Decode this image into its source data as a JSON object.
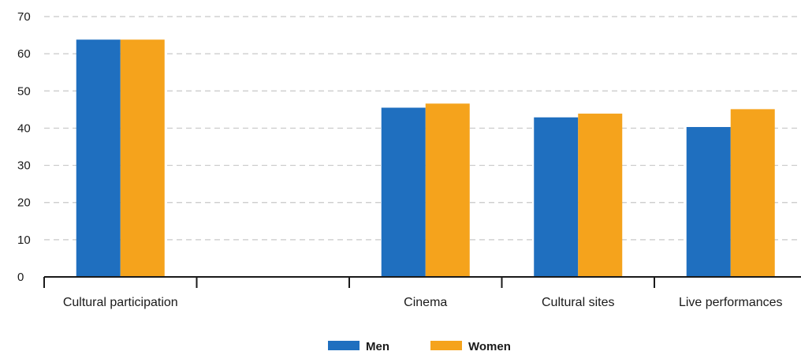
{
  "chart_data": {
    "type": "bar",
    "categories": [
      "Cultural participation",
      "",
      "Cinema",
      "Cultural sites",
      "Live performances"
    ],
    "series": [
      {
        "name": "Men",
        "values": [
          63.8,
          null,
          45.5,
          42.9,
          40.3
        ]
      },
      {
        "name": "Women",
        "values": [
          63.8,
          null,
          46.6,
          43.9,
          45.1
        ]
      }
    ],
    "yticks": [
      "0",
      "10",
      "20",
      "30",
      "40",
      "50",
      "60",
      "70"
    ],
    "ylim": [
      0,
      70
    ],
    "grid": "dashed horizontal",
    "legend_position": "bottom-center",
    "colors": {
      "Men": "#1f6fbf",
      "Women": "#f5a31c"
    }
  }
}
